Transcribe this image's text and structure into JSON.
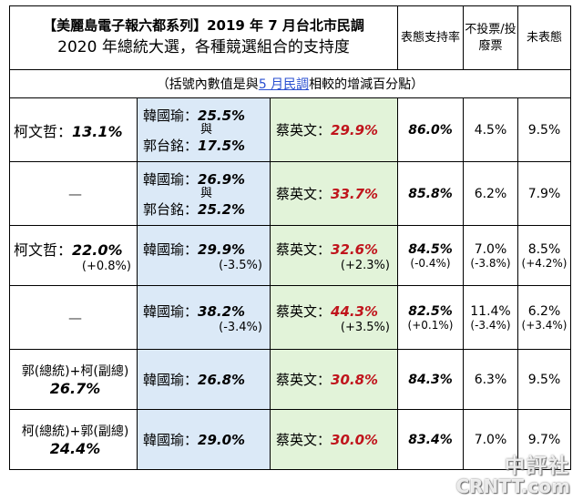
{
  "header": {
    "title_line1": "【美麗島電子報六都系列】2019 年 7 月台北市民調",
    "title_line2": "2020 年總統大選，各種競選組合的支持度",
    "col_support": "表態支持率",
    "col_no_vote": "不投票/投廢票",
    "col_undecided": "未表態"
  },
  "note": {
    "prefix": "（括號內數值是與",
    "highlight": "5 月民調",
    "suffix": "相較的增減百分點）"
  },
  "rows": [
    {
      "c1_name": "柯文哲：",
      "c1_val": "13.1%",
      "c1_chg": "",
      "han": "韓國瑜：",
      "han_val": "25.5%",
      "with": "與",
      "guo": "郭台銘：",
      "guo_val": "17.5%",
      "kmt_chg": "",
      "tsai": "蔡英文：",
      "tsai_val": "29.9%",
      "tsai_chg": "",
      "support": "86.0%",
      "support_chg": "",
      "novote": "4.5%",
      "novote_chg": "",
      "undecided": "9.5%",
      "undecided_chg": ""
    },
    {
      "c1_name": "—",
      "c1_val": "",
      "c1_chg": "",
      "han": "韓國瑜：",
      "han_val": "26.9%",
      "with": "與",
      "guo": "郭台銘：",
      "guo_val": "25.2%",
      "kmt_chg": "",
      "tsai": "蔡英文：",
      "tsai_val": "33.7%",
      "tsai_chg": "",
      "support": "85.8%",
      "support_chg": "",
      "novote": "6.2%",
      "novote_chg": "",
      "undecided": "7.9%",
      "undecided_chg": ""
    },
    {
      "c1_name": "柯文哲：",
      "c1_val": "22.0%",
      "c1_chg": "(+0.8%)",
      "han": "韓國瑜：",
      "han_val": "29.9%",
      "kmt_chg": "(-3.5%)",
      "tsai": "蔡英文：",
      "tsai_val": "32.6%",
      "tsai_chg": "(+2.3%)",
      "support": "84.5%",
      "support_chg": "(-0.4%)",
      "novote": "7.0%",
      "novote_chg": "(-3.8%)",
      "undecided": "8.5%",
      "undecided_chg": "(+4.2%)"
    },
    {
      "c1_name": "—",
      "c1_val": "",
      "c1_chg": "",
      "han": "韓國瑜：",
      "han_val": "38.2%",
      "kmt_chg": "(-3.4%)",
      "tsai": "蔡英文：",
      "tsai_val": "44.3%",
      "tsai_chg": "(+3.5%)",
      "support": "82.5%",
      "support_chg": "(+0.1%)",
      "novote": "11.4%",
      "novote_chg": "(-3.4%)",
      "undecided": "6.2%",
      "undecided_chg": "(+3.4%)"
    },
    {
      "c1_name": "郭(總統)+柯(副總)",
      "c1_val": "26.7%",
      "c1_chg": "",
      "han": "韓國瑜：",
      "han_val": "26.8%",
      "kmt_chg": "",
      "tsai": "蔡英文：",
      "tsai_val": "30.8%",
      "tsai_chg": "",
      "support": "84.3%",
      "support_chg": "",
      "novote": "6.3%",
      "novote_chg": "",
      "undecided": "9.5%",
      "undecided_chg": ""
    },
    {
      "c1_name": "柯(總統)+郭(副總)",
      "c1_val": "24.4%",
      "c1_chg": "",
      "han": "韓國瑜：",
      "han_val": "29.0%",
      "kmt_chg": "",
      "tsai": "蔡英文：",
      "tsai_val": "30.0%",
      "tsai_chg": "",
      "support": "83.4%",
      "support_chg": "",
      "novote": "7.0%",
      "novote_chg": "",
      "undecided": "9.7%",
      "undecided_chg": ""
    }
  ],
  "watermark": {
    "line1": "中評社",
    "line2": "CRNTT.com"
  }
}
